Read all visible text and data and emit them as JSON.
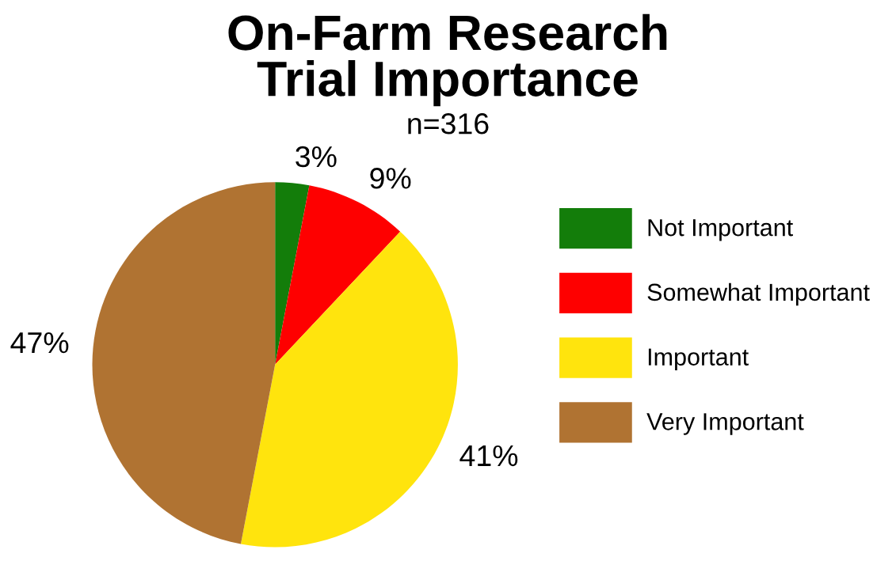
{
  "chart_data": {
    "type": "pie",
    "title": "On-Farm Research\nTrial Importance",
    "subtitle": "n=316",
    "categories": [
      "Not Important",
      "Somewhat Important",
      "Important",
      "Very Important"
    ],
    "values": [
      3,
      9,
      41,
      47
    ],
    "colors": [
      "#137d0a",
      "#fe0000",
      "#ffe40d",
      "#b07332"
    ],
    "value_labels": [
      "3%",
      "9%",
      "41%",
      "47%"
    ],
    "legend": "right"
  }
}
